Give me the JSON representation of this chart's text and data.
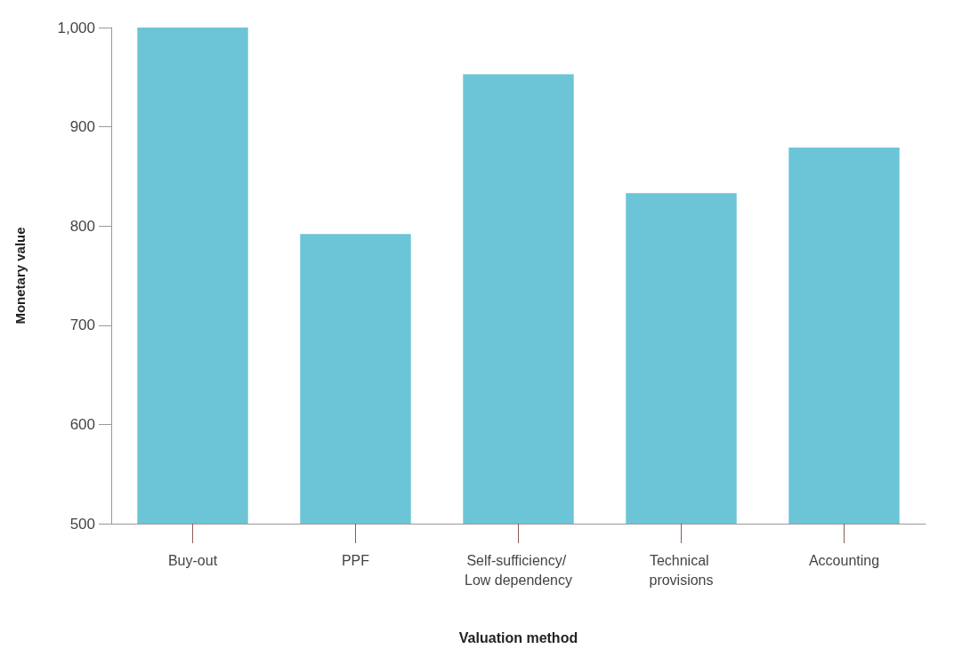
{
  "chart_data": {
    "type": "bar",
    "xlabel": "Valuation method",
    "ylabel": "Monetary value",
    "categories": [
      "Buy-out",
      "PPF",
      "Self-sufficiency/ Low dependency",
      "Technical provisions",
      "Accounting"
    ],
    "values": [
      1000,
      792,
      953,
      833,
      879
    ],
    "color": "#6cc5d6",
    "ylim": [
      500,
      1000
    ],
    "yticks": [
      500,
      600,
      700,
      800,
      900,
      {
        "value": 1000,
        "label": "1,000"
      }
    ],
    "grid": false
  }
}
